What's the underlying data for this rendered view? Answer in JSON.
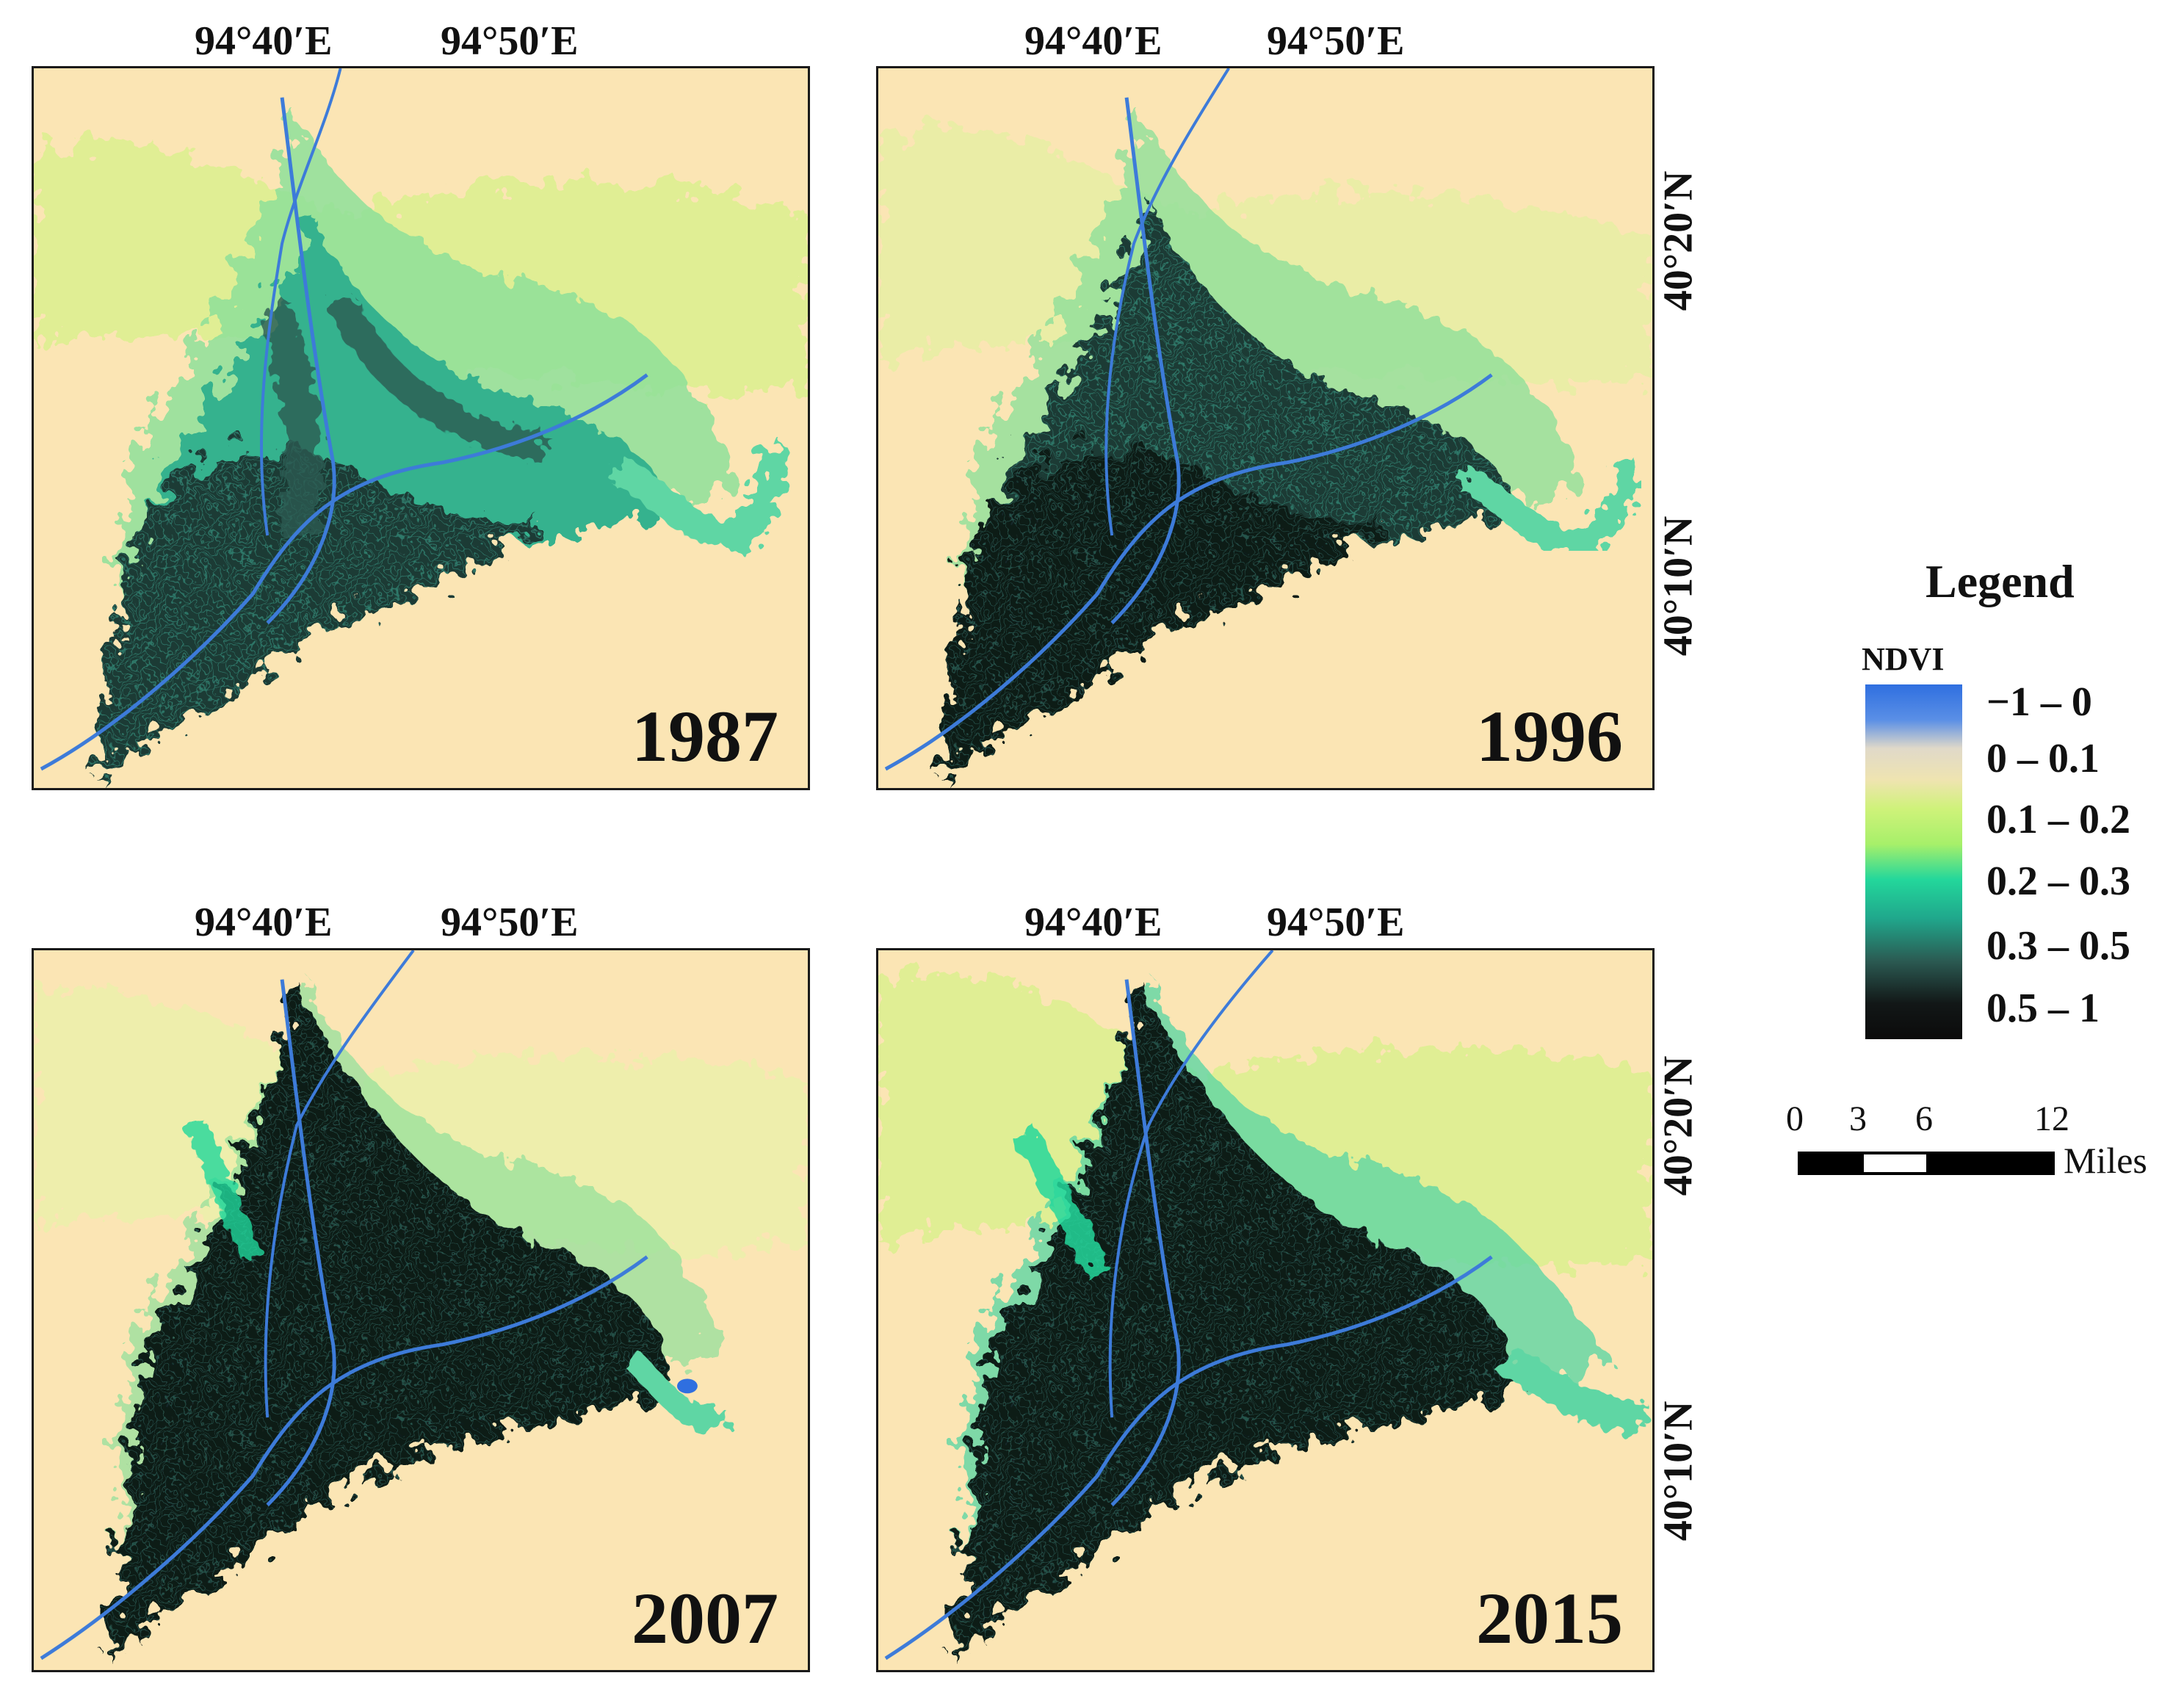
{
  "longitude_labels": [
    "94°40′E",
    "94°50′E"
  ],
  "latitude_labels": [
    "40°20′N",
    "40°10′N"
  ],
  "panels": [
    {
      "year": "1987"
    },
    {
      "year": "1996"
    },
    {
      "year": "2007"
    },
    {
      "year": "2015"
    }
  ],
  "legend": {
    "title": "Legend",
    "subtitle": "NDVI",
    "classes": [
      "−1 – 0",
      "0 – 0.1",
      "0.1 – 0.2",
      "0.2 – 0.3",
      "0.3 – 0.5",
      "0.5 – 1"
    ],
    "colors": [
      "#2f6fe0",
      "#e0d9c9",
      "#cff27a",
      "#23d79b",
      "#2b5a52",
      "#0b0b0b"
    ]
  },
  "scale_bar": {
    "ticks": [
      "0",
      "3",
      "6",
      "12"
    ],
    "unit": "Miles"
  },
  "colors": {
    "background_sand": "#fbe5b4",
    "river": "#3d7bd9"
  }
}
